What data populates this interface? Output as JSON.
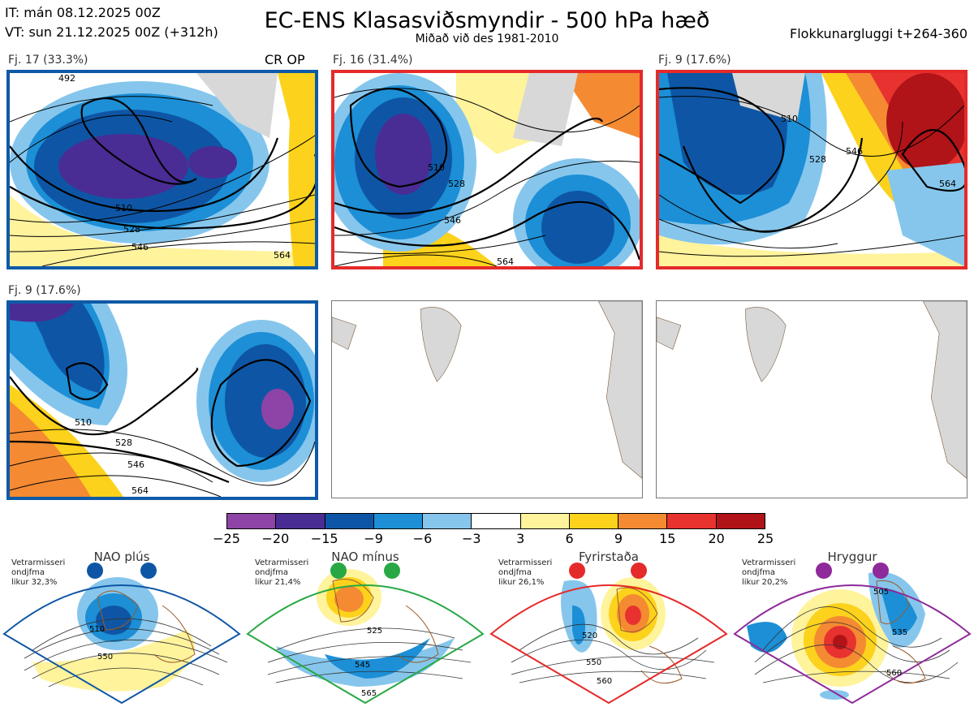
{
  "header": {
    "it": "IT: mán 08.12.2025 00Z",
    "vt": "VT: sun 21.12.2025 00Z  (+312h)",
    "title": "EC-ENS Klasasviðsmyndir - 500 hPa hæð",
    "subtitle": "Miðað við des 1981-2010",
    "window": "Flokkunargluggi t+264-360"
  },
  "clusters": [
    {
      "label": "Fj. 17 (33.3%)",
      "badge": "CR OP",
      "border_color": "#0e5aa7",
      "contours": [
        "492",
        "510",
        "528",
        "546",
        "564"
      ]
    },
    {
      "label": "Fj. 16 (31.4%)",
      "badge": "",
      "border_color": "#e52a2a",
      "contours": [
        "510",
        "528",
        "546",
        "564"
      ]
    },
    {
      "label": "Fj. 9 (17.6%)",
      "badge": "",
      "border_color": "#e52a2a",
      "contours": [
        "510",
        "528",
        "546",
        "564"
      ]
    },
    {
      "label": "Fj. 9 (17.6%)",
      "badge": "",
      "border_color": "#0e5aa7",
      "contours": [
        "510",
        "528",
        "546",
        "564"
      ]
    }
  ],
  "legend": {
    "ticks": [
      "−25",
      "−20",
      "−15",
      "−9",
      "−6",
      "−3",
      "3",
      "6",
      "9",
      "15",
      "20",
      "25"
    ],
    "colors": [
      "#8e44a6",
      "#4a2c95",
      "#0e56a5",
      "#1c8fd6",
      "#86c6ec",
      "#ffffff",
      "#fff39c",
      "#fcd21c",
      "#f48a32",
      "#e8322f",
      "#b01318"
    ]
  },
  "regimes": [
    {
      "name": "NAO plús",
      "info": [
        "Vetrarmisseri",
        "ondjfma",
        "likur 32,3%"
      ],
      "color": "#0e56a5",
      "contours": [
        "510",
        "550"
      ]
    },
    {
      "name": "NAO mínus",
      "info": [
        "Vetrarmisseri",
        "ondjfma",
        "likur 21,4%"
      ],
      "color": "#27a844",
      "contours": [
        "525",
        "545",
        "565"
      ]
    },
    {
      "name": "Fyrirstaða",
      "info": [
        "Vetrarmisseri",
        "ondjfma",
        "likur 26,1%"
      ],
      "color": "#e52a2a",
      "contours": [
        "520",
        "550",
        "560"
      ]
    },
    {
      "name": "Hryggur",
      "info": [
        "Vetrarmisseri",
        "ondjfma",
        "likur 20,2%"
      ],
      "color": "#8e2a9a",
      "contours": [
        "505",
        "535",
        "560"
      ]
    }
  ]
}
